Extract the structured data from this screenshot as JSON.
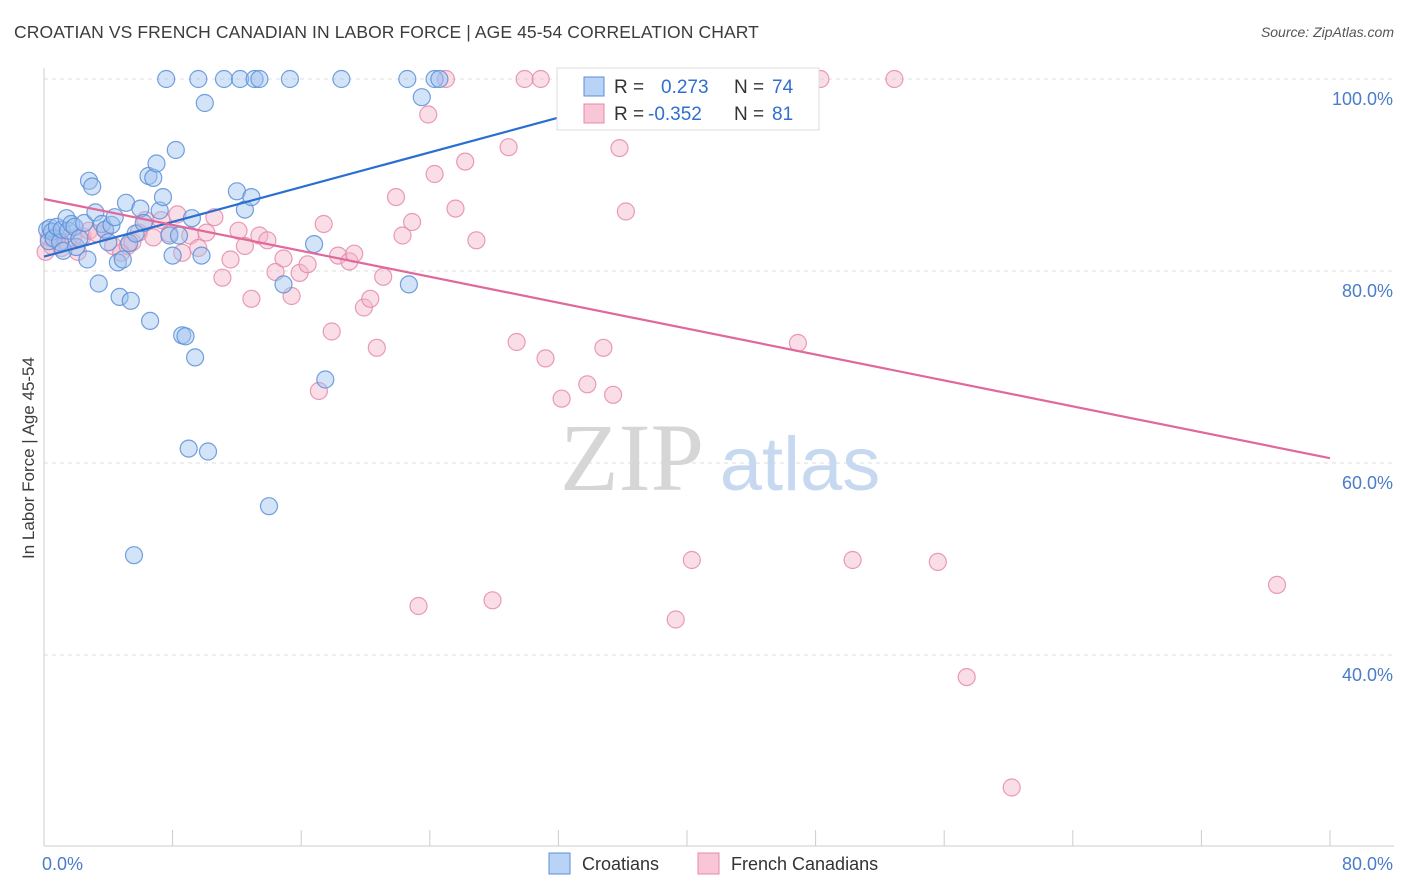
{
  "header": {
    "title": "CROATIAN VS FRENCH CANADIAN IN LABOR FORCE | AGE 45-54 CORRELATION CHART",
    "source": "Source: ZipAtlas.com"
  },
  "watermark": {
    "zip": "ZIP",
    "atlas": "atlas"
  },
  "colors": {
    "blue_fill": "#9ec2f0",
    "blue_stroke": "#5b8fd8",
    "blue_line": "#2a6fd0",
    "pink_fill": "#f5b6c9",
    "pink_stroke": "#e68aa8",
    "pink_line": "#e0689a",
    "tick_text": "#4a7cc9",
    "grid": "#dddddd"
  },
  "legend": {
    "rows": [
      {
        "r_label": "R =",
        "r_value": "0.273",
        "n_label": "N =",
        "n_value": "74"
      },
      {
        "r_label": "R =",
        "r_value": "-0.352",
        "n_label": "N =",
        "n_value": "81"
      }
    ]
  },
  "bottom_legend": [
    "Croatians",
    "French Canadians"
  ],
  "chart_data": {
    "type": "scatter",
    "title": "CROATIAN VS FRENCH CANADIAN IN LABOR FORCE | AGE 45-54 CORRELATION CHART",
    "xlabel": "",
    "ylabel": "In Labor Force | Age 45-54",
    "xlim": [
      0,
      80
    ],
    "ylim": [
      20,
      101
    ],
    "x_tick_labels": [
      "0.0%",
      "80.0%"
    ],
    "y_ticks": [
      100,
      80,
      60,
      40
    ],
    "y_tick_labels": [
      "100.0%",
      "80.0%",
      "60.0%",
      "40.0%"
    ],
    "grid": true,
    "legend_position": "top-center",
    "series": [
      {
        "name": "Croatians",
        "r": 0.273,
        "n": 74,
        "trend": {
          "x": [
            0,
            42
          ],
          "y": [
            81.5,
            100.5
          ]
        },
        "points": [
          [
            0.2,
            84.3
          ],
          [
            0.3,
            83.1
          ],
          [
            0.4,
            84.5
          ],
          [
            0.5,
            84.1
          ],
          [
            0.6,
            83.4
          ],
          [
            0.8,
            84.6
          ],
          [
            1.0,
            83.0
          ],
          [
            1.1,
            84.3
          ],
          [
            1.2,
            82.1
          ],
          [
            1.4,
            85.5
          ],
          [
            1.5,
            84.2
          ],
          [
            1.7,
            84.9
          ],
          [
            1.9,
            84.6
          ],
          [
            2.0,
            82.5
          ],
          [
            2.2,
            83.4
          ],
          [
            2.5,
            85.0
          ],
          [
            2.7,
            81.2
          ],
          [
            2.8,
            89.4
          ],
          [
            3.0,
            88.8
          ],
          [
            3.2,
            86.1
          ],
          [
            3.4,
            78.7
          ],
          [
            3.6,
            84.9
          ],
          [
            3.8,
            84.3
          ],
          [
            4.0,
            83.0
          ],
          [
            4.2,
            84.8
          ],
          [
            4.4,
            85.6
          ],
          [
            4.6,
            80.9
          ],
          [
            4.7,
            77.3
          ],
          [
            4.9,
            81.2
          ],
          [
            5.1,
            87.1
          ],
          [
            5.3,
            82.9
          ],
          [
            5.4,
            76.9
          ],
          [
            5.6,
            50.4
          ],
          [
            5.7,
            83.9
          ],
          [
            6.0,
            86.5
          ],
          [
            6.2,
            85.0
          ],
          [
            6.5,
            89.9
          ],
          [
            6.6,
            74.8
          ],
          [
            6.8,
            89.7
          ],
          [
            7.0,
            91.2
          ],
          [
            7.2,
            86.3
          ],
          [
            7.4,
            87.7
          ],
          [
            7.6,
            100.0
          ],
          [
            7.8,
            83.7
          ],
          [
            8.0,
            81.6
          ],
          [
            8.2,
            92.6
          ],
          [
            8.4,
            83.7
          ],
          [
            8.6,
            73.3
          ],
          [
            8.8,
            73.2
          ],
          [
            9.0,
            61.5
          ],
          [
            9.2,
            85.5
          ],
          [
            9.4,
            71.0
          ],
          [
            9.6,
            100.0
          ],
          [
            9.8,
            81.6
          ],
          [
            10.0,
            97.5
          ],
          [
            10.2,
            61.2
          ],
          [
            11.2,
            100.0
          ],
          [
            12.0,
            88.3
          ],
          [
            12.2,
            100.0
          ],
          [
            12.5,
            86.4
          ],
          [
            12.9,
            87.7
          ],
          [
            13.1,
            100.0
          ],
          [
            13.4,
            100.0
          ],
          [
            14.0,
            55.5
          ],
          [
            14.9,
            78.6
          ],
          [
            15.3,
            100.0
          ],
          [
            16.8,
            82.8
          ],
          [
            17.5,
            68.7
          ],
          [
            18.5,
            100.0
          ],
          [
            22.6,
            100.0
          ],
          [
            22.7,
            78.6
          ],
          [
            23.5,
            98.1
          ],
          [
            24.3,
            100.0
          ],
          [
            24.6,
            100.0
          ]
        ]
      },
      {
        "name": "French Canadians",
        "r": -0.352,
        "n": 81,
        "trend": {
          "x": [
            0,
            80
          ],
          "y": [
            87.5,
            60.5
          ]
        },
        "points": [
          [
            0.1,
            82.0
          ],
          [
            0.3,
            83.5
          ],
          [
            0.5,
            82.6
          ],
          [
            0.8,
            83.6
          ],
          [
            1.1,
            82.4
          ],
          [
            1.4,
            83.0
          ],
          [
            1.8,
            83.4
          ],
          [
            2.1,
            82.0
          ],
          [
            2.4,
            83.6
          ],
          [
            2.8,
            84.2
          ],
          [
            3.3,
            83.9
          ],
          [
            3.8,
            84.3
          ],
          [
            4.3,
            82.6
          ],
          [
            4.8,
            81.9
          ],
          [
            5.2,
            82.6
          ],
          [
            5.5,
            83.0
          ],
          [
            5.9,
            84.0
          ],
          [
            6.3,
            85.3
          ],
          [
            6.8,
            83.5
          ],
          [
            7.3,
            85.3
          ],
          [
            7.8,
            83.9
          ],
          [
            8.3,
            85.9
          ],
          [
            8.6,
            81.9
          ],
          [
            9.1,
            83.7
          ],
          [
            9.6,
            82.4
          ],
          [
            10.1,
            84.0
          ],
          [
            10.6,
            85.6
          ],
          [
            11.1,
            79.3
          ],
          [
            11.6,
            81.2
          ],
          [
            12.1,
            84.2
          ],
          [
            12.5,
            82.6
          ],
          [
            12.9,
            77.1
          ],
          [
            13.4,
            83.7
          ],
          [
            13.9,
            83.2
          ],
          [
            14.4,
            79.9
          ],
          [
            14.9,
            81.3
          ],
          [
            15.4,
            77.4
          ],
          [
            15.9,
            79.8
          ],
          [
            16.4,
            80.7
          ],
          [
            17.1,
            67.5
          ],
          [
            17.4,
            84.9
          ],
          [
            17.9,
            73.7
          ],
          [
            18.3,
            81.6
          ],
          [
            19.0,
            81.0
          ],
          [
            19.3,
            81.8
          ],
          [
            19.9,
            76.2
          ],
          [
            20.3,
            77.1
          ],
          [
            20.7,
            72.0
          ],
          [
            21.1,
            79.4
          ],
          [
            21.9,
            87.7
          ],
          [
            22.3,
            83.7
          ],
          [
            22.9,
            85.1
          ],
          [
            23.3,
            45.1
          ],
          [
            23.9,
            96.3
          ],
          [
            24.3,
            90.1
          ],
          [
            25.0,
            100.0
          ],
          [
            25.6,
            86.5
          ],
          [
            26.2,
            91.4
          ],
          [
            26.9,
            83.2
          ],
          [
            27.9,
            45.7
          ],
          [
            28.9,
            92.9
          ],
          [
            29.4,
            72.6
          ],
          [
            29.9,
            100.0
          ],
          [
            30.9,
            100.0
          ],
          [
            31.2,
            70.9
          ],
          [
            32.2,
            66.7
          ],
          [
            33.0,
            100.0
          ],
          [
            33.8,
            68.2
          ],
          [
            34.8,
            72.0
          ],
          [
            35.4,
            67.1
          ],
          [
            35.8,
            92.8
          ],
          [
            36.2,
            86.2
          ],
          [
            39.3,
            43.7
          ],
          [
            40.3,
            49.9
          ],
          [
            44.3,
            100.0
          ],
          [
            46.9,
            72.5
          ],
          [
            48.3,
            100.0
          ],
          [
            50.3,
            49.9
          ],
          [
            52.9,
            100.0
          ],
          [
            55.6,
            49.7
          ],
          [
            57.4,
            37.7
          ],
          [
            60.2,
            26.2
          ],
          [
            76.7,
            47.3
          ]
        ]
      }
    ]
  }
}
